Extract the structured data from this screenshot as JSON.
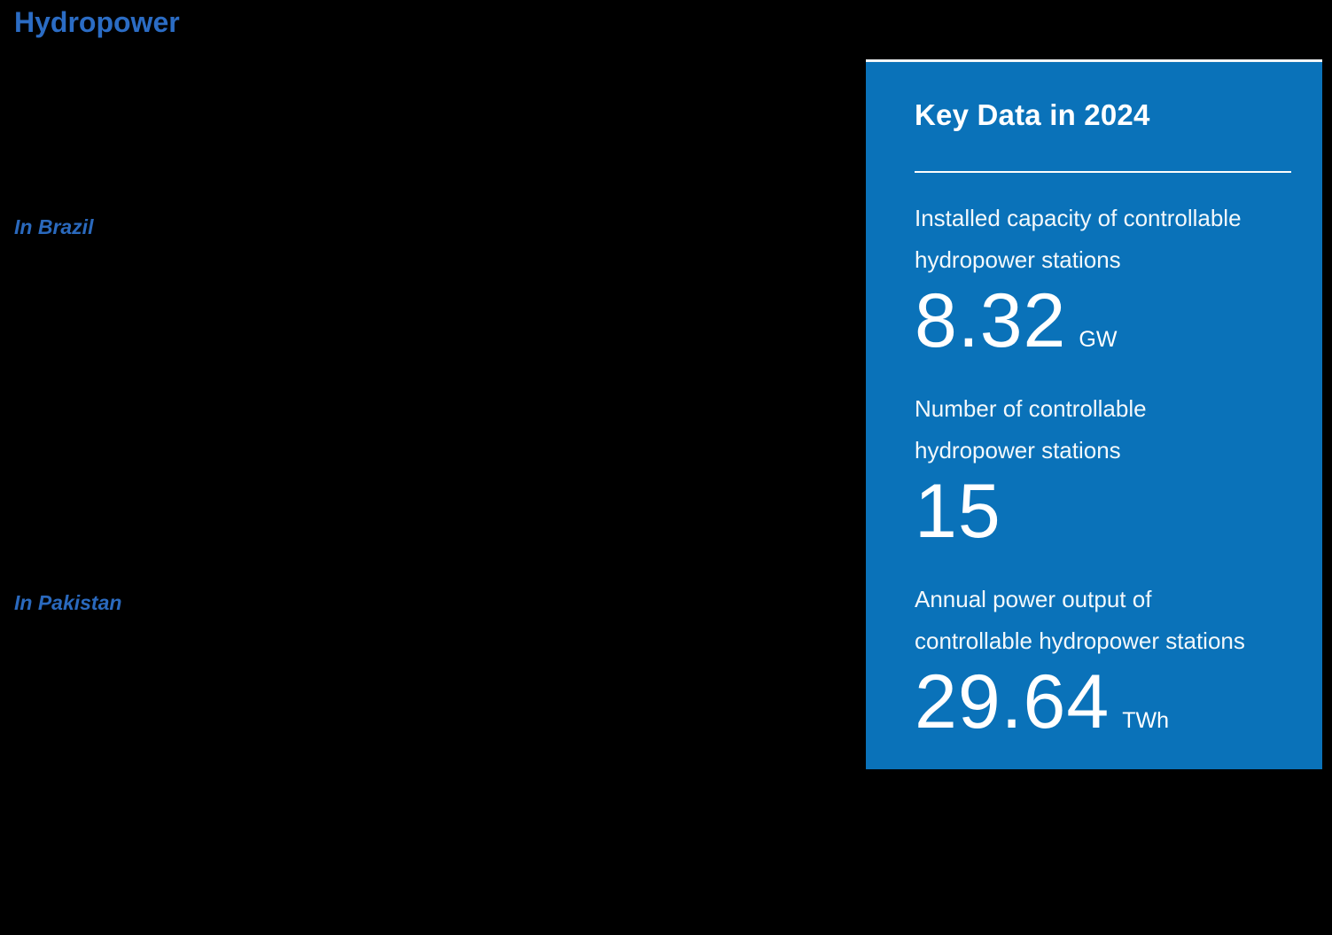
{
  "page": {
    "title": "Hydropower",
    "sections": [
      {
        "label": "In Brazil"
      },
      {
        "label": "In Pakistan"
      }
    ]
  },
  "card": {
    "title": "Key Data in 2024",
    "stats": [
      {
        "label_line1": "Installed capacity of controllable",
        "label_line2": "hydropower stations",
        "value": "8.32",
        "unit": "GW"
      },
      {
        "label_line1": "Number of controllable",
        "label_line2": "hydropower stations",
        "value": "15",
        "unit": ""
      },
      {
        "label_line1": "Annual power output of",
        "label_line2": "controllable hydropower stations",
        "value": "29.64",
        "unit": "TWh"
      }
    ]
  },
  "colors": {
    "background": "#000000",
    "title_blue": "#2b6cc4",
    "subhead_blue": "#2a69bd",
    "card_blue": "#0a72b9",
    "card_text": "#ffffff"
  }
}
